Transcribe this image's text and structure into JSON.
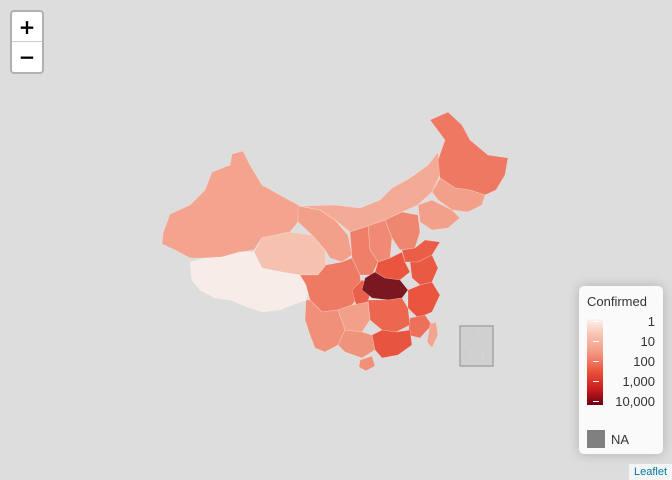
{
  "zoom": {
    "zoom_in_label": "+",
    "zoom_out_label": "−"
  },
  "legend": {
    "title": "Confirmed",
    "labels": [
      "1",
      "10",
      "100",
      "1,000",
      "10,000"
    ],
    "na_label": "NA",
    "na_color": "#808080"
  },
  "attribution": "Leaflet",
  "colors": {
    "background": "#dddddd",
    "low": "#fdf3ef",
    "mid": "#f59a84",
    "high": "#ea4f3a",
    "max": "#6b0011"
  },
  "regions": [
    {
      "name": "Xinjiang",
      "color": "#f4a48e"
    },
    {
      "name": "Tibet",
      "color": "#f8ece8"
    },
    {
      "name": "Qinghai",
      "color": "#f6c2b0"
    },
    {
      "name": "Inner Mongolia",
      "color": "#f4ab96"
    },
    {
      "name": "Gansu",
      "color": "#f3a08a"
    },
    {
      "name": "Heilongjiang",
      "color": "#ef7862"
    },
    {
      "name": "Jilin",
      "color": "#f2a08a"
    },
    {
      "name": "Liaoning",
      "color": "#f2a08a"
    },
    {
      "name": "Sichuan",
      "color": "#ee7a64"
    },
    {
      "name": "Yunnan",
      "color": "#f09078"
    },
    {
      "name": "Hubei",
      "color": "#7a1721"
    },
    {
      "name": "Henan",
      "color": "#e9553f"
    },
    {
      "name": "Hunan",
      "color": "#ec6650"
    },
    {
      "name": "Guangdong",
      "color": "#e75541"
    },
    {
      "name": "Zhejiang",
      "color": "#e9553f"
    },
    {
      "name": "Taiwan",
      "color": "#f2a690"
    }
  ]
}
